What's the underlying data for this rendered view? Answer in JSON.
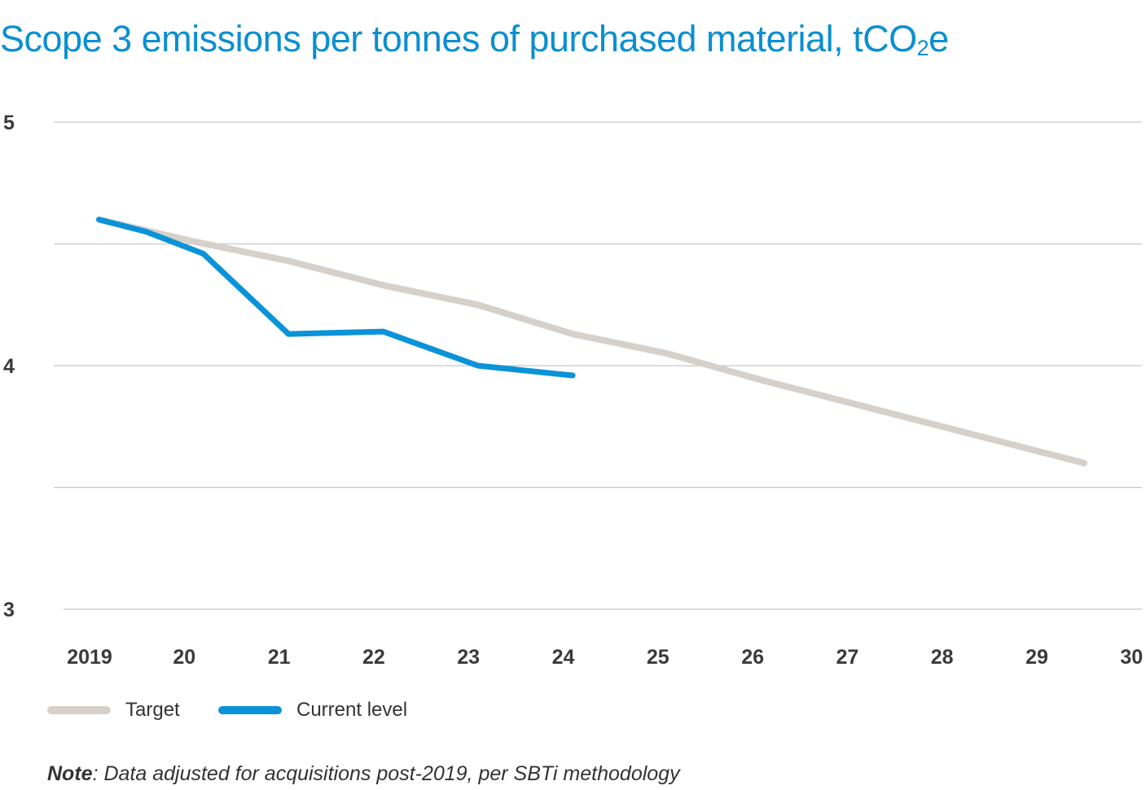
{
  "title": {
    "main": "Scope 3 emissions per tonnes of purchased material, tCO",
    "subscript": "2",
    "suffix": "e"
  },
  "colors": {
    "target": "#d6d0cb",
    "current": "#0a93d8",
    "title": "#0a8fd1",
    "grid": "#c8c8c8"
  },
  "legend": {
    "target_label": "Target",
    "current_label": "Current level"
  },
  "note": {
    "label": "Note",
    "text": ": Data adjusted for acquisitions post-2019, per SBTi methodology"
  },
  "chart_data": {
    "type": "line",
    "title": "Scope 3 emissions per tonnes of purchased material, tCO2e",
    "xlabel": "",
    "ylabel": "",
    "x_tick_labels": [
      "2019",
      "20",
      "21",
      "22",
      "23",
      "24",
      "25",
      "26",
      "27",
      "28",
      "29",
      "30"
    ],
    "y_tick_labels": [
      "5",
      "4",
      "3"
    ],
    "ylim": [
      3,
      5
    ],
    "grid": true,
    "legend_position": "bottom-left",
    "series": [
      {
        "name": "Target",
        "color": "#d6d0cb",
        "points": [
          [
            2019.1,
            4.6
          ],
          [
            2020.1,
            4.51
          ],
          [
            2021.1,
            4.43
          ],
          [
            2022.1,
            4.33
          ],
          [
            2023.1,
            4.25
          ],
          [
            2024.1,
            4.13
          ],
          [
            2025.1,
            4.05
          ],
          [
            2026.1,
            3.94
          ],
          [
            2027.1,
            3.84
          ],
          [
            2028.1,
            3.74
          ],
          [
            2029.5,
            3.6
          ]
        ]
      },
      {
        "name": "Current level",
        "color": "#0a93d8",
        "points": [
          [
            2019.1,
            4.6
          ],
          [
            2019.6,
            4.55
          ],
          [
            2020.2,
            4.46
          ],
          [
            2021.1,
            4.13
          ],
          [
            2022.1,
            4.14
          ],
          [
            2023.1,
            4.0
          ],
          [
            2024.1,
            3.96
          ]
        ]
      }
    ]
  }
}
